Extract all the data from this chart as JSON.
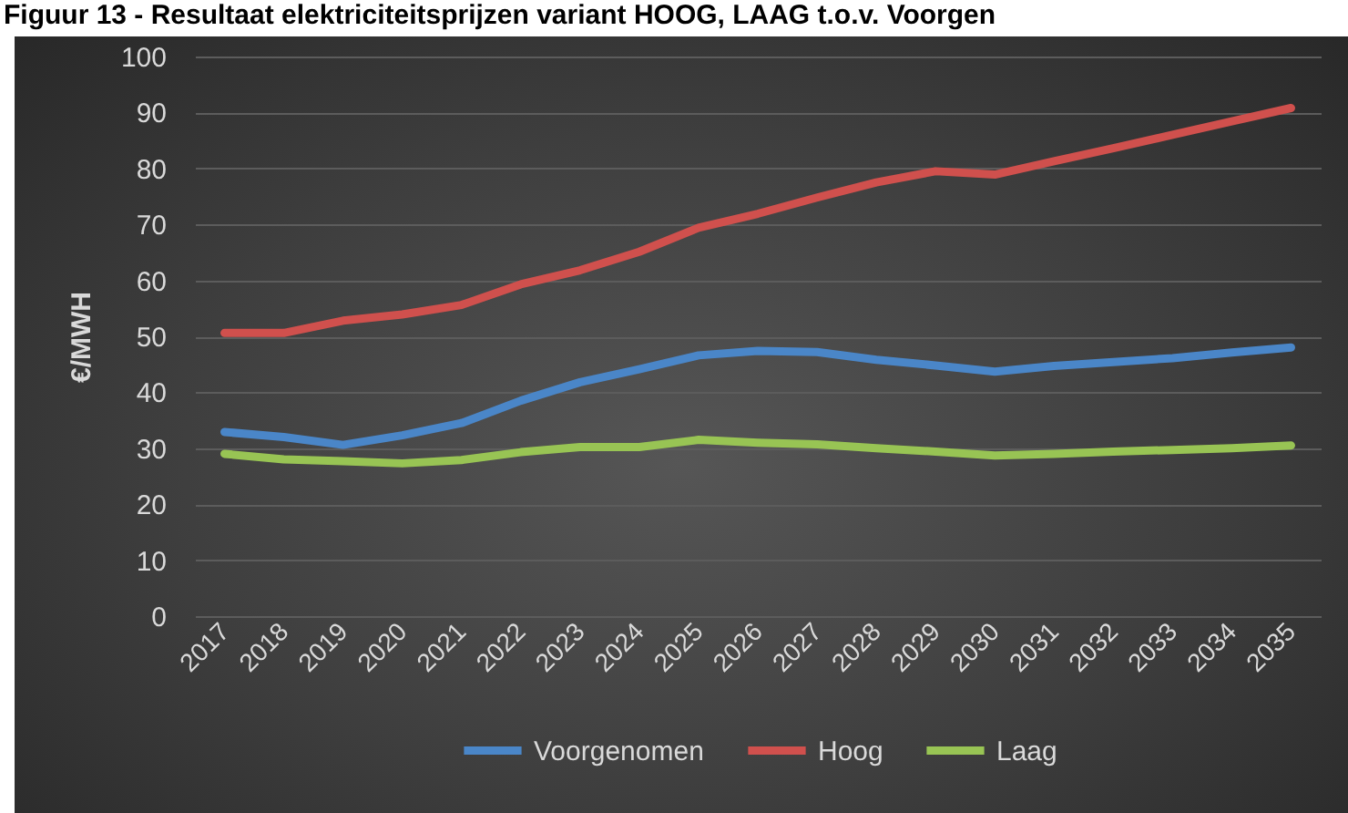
{
  "chart_data": {
    "type": "line",
    "title": "Figuur 13 - Resultaat elektriciteitsprijzen variant HOOG, LAAG t.o.v. Voorgen",
    "ylabel": "€/MWH",
    "categories": [
      "2017",
      "2018",
      "2019",
      "2020",
      "2021",
      "2022",
      "2023",
      "2024",
      "2025",
      "2026",
      "2027",
      "2028",
      "2029",
      "2030",
      "2031",
      "2032",
      "2033",
      "2034",
      "2035"
    ],
    "series": [
      {
        "name": "Voorgenomen",
        "color": "#4a86c8",
        "values": [
          32.9,
          32.0,
          30.6,
          32.3,
          34.5,
          38.5,
          41.8,
          44.1,
          46.6,
          47.4,
          47.2,
          45.8,
          44.8,
          43.7,
          44.7,
          45.4,
          46.1,
          47.1,
          48.0
        ]
      },
      {
        "name": "Hoog",
        "color": "#d0504d",
        "values": [
          50.6,
          50.6,
          52.8,
          53.9,
          55.6,
          59.3,
          61.8,
          65.1,
          69.4,
          71.9,
          74.8,
          77.5,
          79.5,
          78.9,
          81.3,
          83.6,
          86.0,
          88.4,
          90.8
        ]
      },
      {
        "name": "Laag",
        "color": "#98c454",
        "values": [
          29.0,
          28.0,
          27.7,
          27.3,
          27.9,
          29.3,
          30.2,
          30.2,
          31.5,
          31.0,
          30.7,
          30.0,
          29.4,
          28.7,
          29.0,
          29.4,
          29.7,
          30.0,
          30.5
        ]
      }
    ],
    "ylim": [
      0,
      100
    ],
    "yticks": [
      0,
      10,
      20,
      30,
      40,
      50,
      60,
      70,
      80,
      90,
      100
    ],
    "grid": "y",
    "legend": "bottom",
    "line_style": "solid"
  }
}
